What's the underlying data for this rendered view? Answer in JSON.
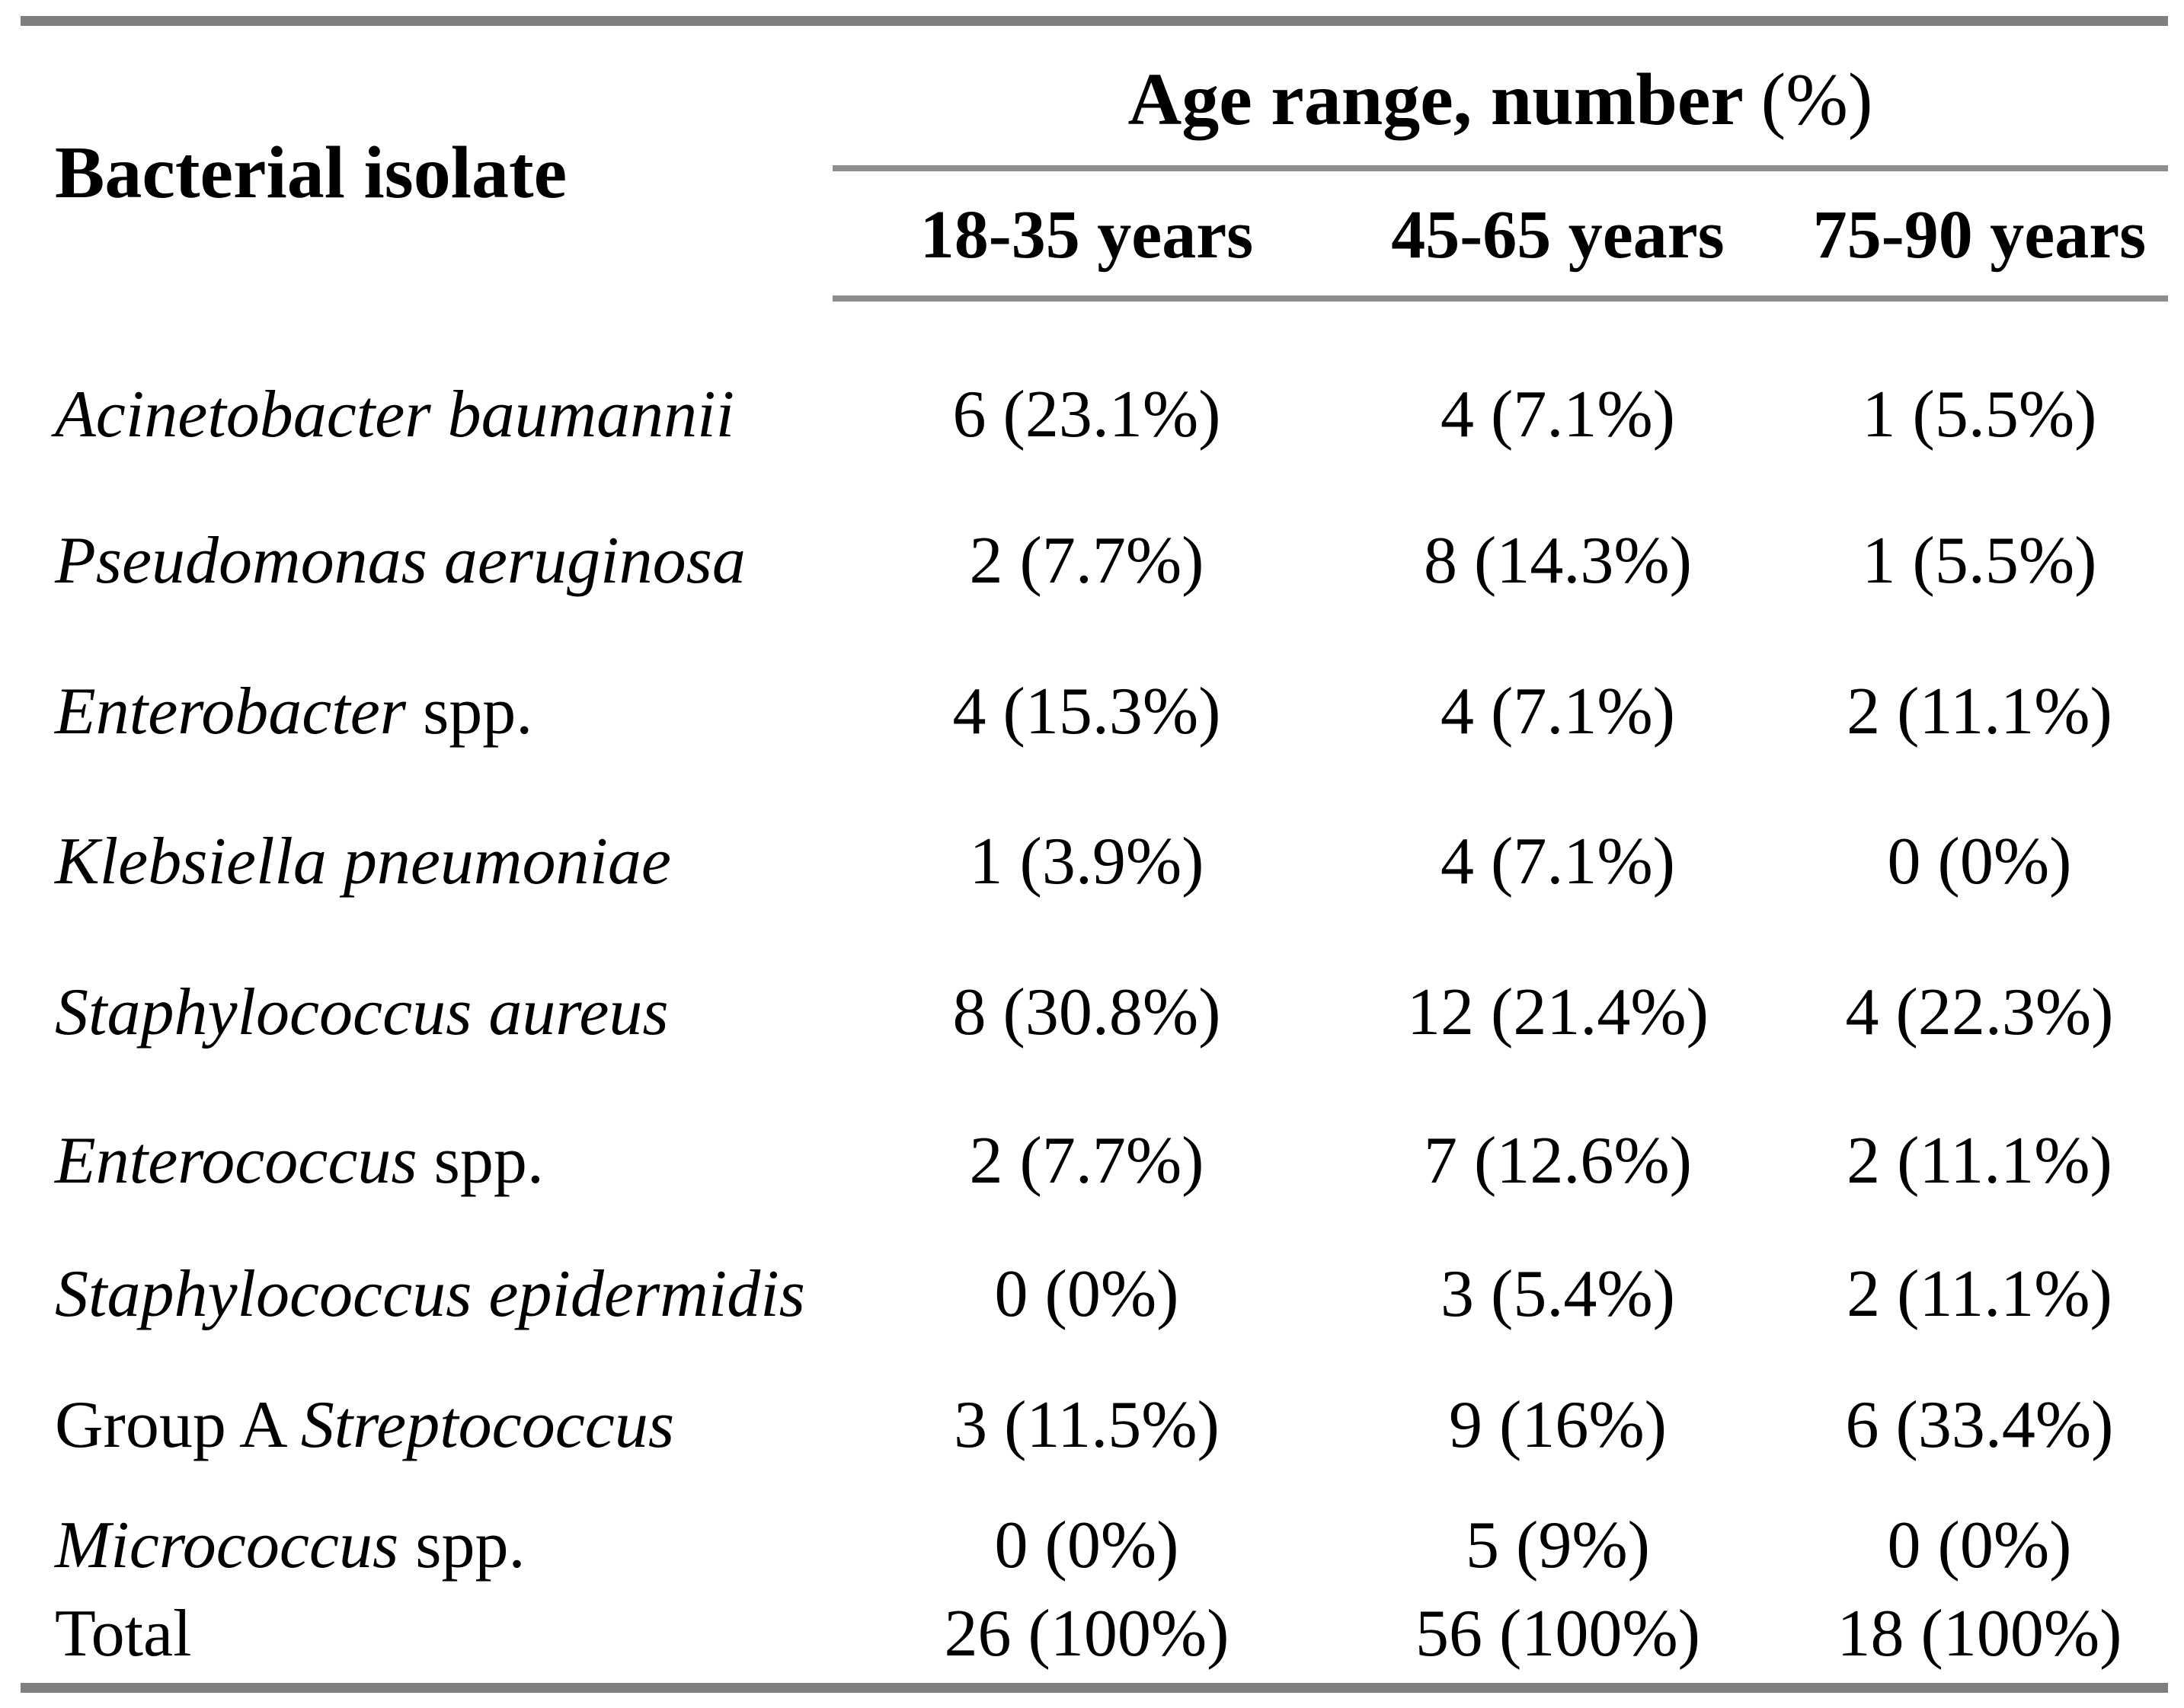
{
  "page": {
    "background": "#ffffff",
    "bar_color": "#7f7f7f",
    "rule_color": "#8d8d8d",
    "text_color": "#000000"
  },
  "table": {
    "row_header": "Bacterial isolate",
    "group_header": "Age range, number ",
    "group_header_suffix": "(%)",
    "columns": [
      "18-35 years",
      "45-65 years",
      "75-90 years"
    ],
    "rows": [
      {
        "pre": "",
        "italic": "Acinetobacter baumannii",
        "suf": "",
        "values": [
          "6 (23.1%)",
          "4 (7.1%)",
          "1 (5.5%)"
        ]
      },
      {
        "pre": "",
        "italic": "Pseudomonas aeruginosa",
        "suf": "",
        "values": [
          "2 (7.7%)",
          "8 (14.3%)",
          "1 (5.5%)"
        ]
      },
      {
        "pre": "",
        "italic": "Enterobacter",
        "suf": " spp.",
        "values": [
          "4 (15.3%)",
          "4 (7.1%)",
          "2 (11.1%)"
        ]
      },
      {
        "pre": "",
        "italic": "Klebsiella pneumoniae",
        "suf": "",
        "values": [
          "1 (3.9%)",
          "4 (7.1%)",
          "0 (0%)"
        ]
      },
      {
        "pre": "",
        "italic": "Staphylococcus aureus",
        "suf": "",
        "values": [
          "8 (30.8%)",
          "12 (21.4%)",
          "4 (22.3%)"
        ]
      },
      {
        "pre": "",
        "italic": "Enterococcus",
        "suf": " spp.",
        "values": [
          "2 (7.7%)",
          "7 (12.6%)",
          "2 (11.1%)"
        ]
      },
      {
        "pre": "",
        "italic": "Staphylococcus epidermidis",
        "suf": "",
        "values": [
          "0 (0%)",
          "3 (5.4%)",
          "2 (11.1%)"
        ]
      },
      {
        "pre": "Group A ",
        "italic": "Streptococcus",
        "suf": "",
        "values": [
          "3 (11.5%)",
          "9 (16%)",
          "6 (33.4%)"
        ]
      },
      {
        "pre": "",
        "italic": "Micrococcus",
        "suf": " spp.",
        "values": [
          "0 (0%)",
          "5 (9%)",
          "0 (0%)"
        ]
      },
      {
        "pre": "Total",
        "italic": "",
        "suf": "",
        "values": [
          "26 (100%)",
          "56 (100%)",
          "18 (100%)"
        ]
      }
    ]
  }
}
